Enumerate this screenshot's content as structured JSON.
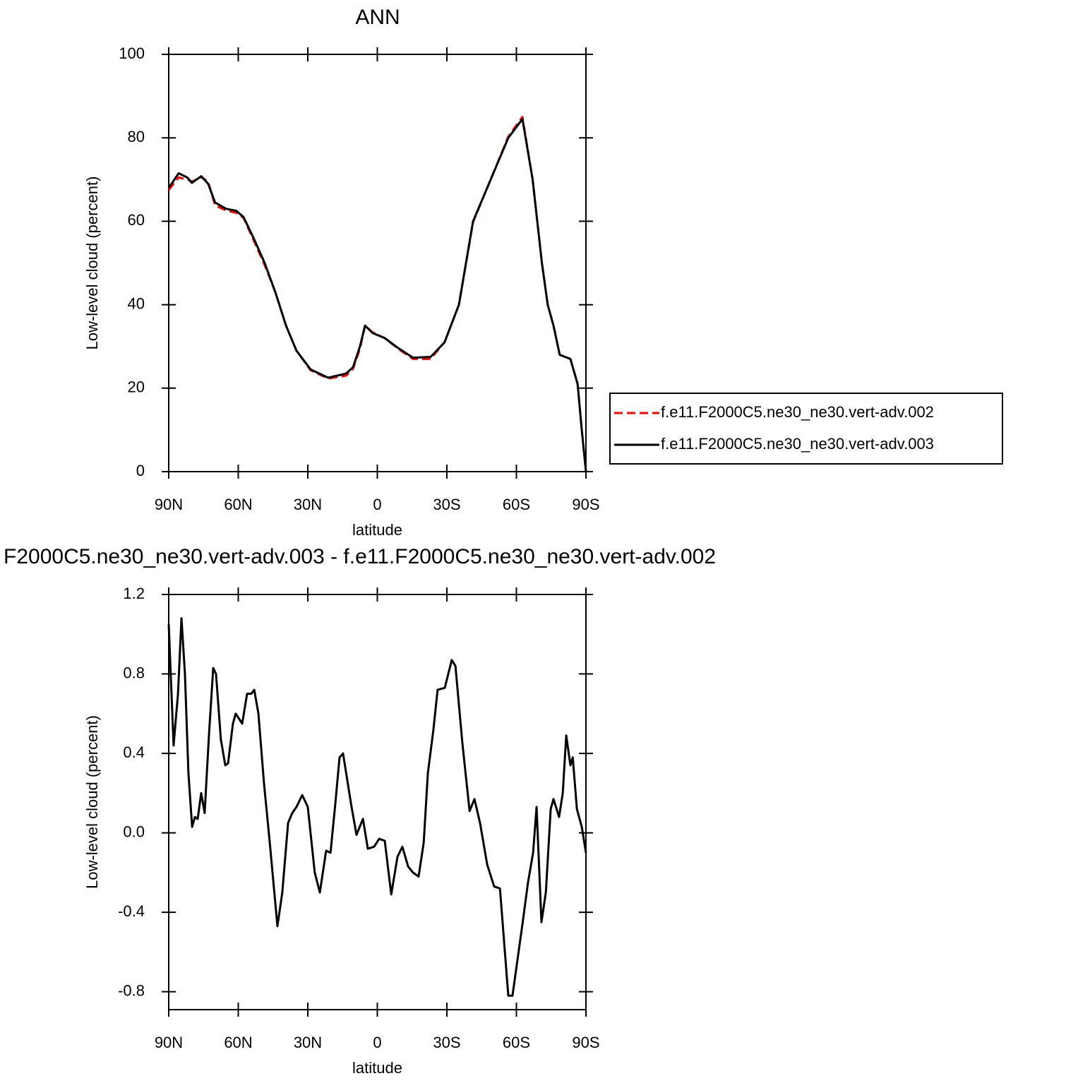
{
  "chart_data": [
    {
      "type": "line",
      "title": "ANN",
      "xlabel": "latitude",
      "ylabel": "Low-level cloud (percent)",
      "x": [
        90,
        85.7,
        82,
        80,
        76,
        73,
        70,
        65.3,
        60.8,
        57.7,
        53,
        48.6,
        44,
        39.4,
        34.9,
        28.8,
        21.2,
        13.5,
        10.5,
        7.5,
        5.3,
        2,
        -3.2,
        -9.3,
        -15.4,
        -23,
        -29,
        -35.2,
        -41.3,
        -48.9,
        -56.5,
        -62.6,
        -67,
        -71,
        -73.5,
        -76,
        -78.7,
        -83.3,
        -86.4,
        -88.2,
        -90
      ],
      "series": [
        {
          "name": "f.e11.F2000C5.ne30_ne30.vert-adv.002",
          "color": "#ff0000",
          "linestyle": "dashed",
          "values": [
            67.5,
            70.5,
            70,
            69.5,
            70.6,
            69.5,
            63.8,
            62.6,
            62,
            60.8,
            55,
            49.5,
            43,
            35,
            29,
            24.3,
            22.3,
            23,
            24.6,
            29.5,
            35,
            33.4,
            32,
            29.3,
            27,
            27,
            31,
            40,
            59.8,
            70,
            80.3,
            85,
            70,
            50,
            40,
            35,
            28,
            27,
            21,
            10,
            0
          ]
        },
        {
          "name": "f.e11.F2000C5.ne30_ne30.vert-adv.003",
          "color": "#000000",
          "linestyle": "solid",
          "values": [
            68,
            71.5,
            70.5,
            69.2,
            70.8,
            69,
            64.5,
            63,
            62.5,
            61,
            55.5,
            50,
            43,
            35,
            29,
            24.5,
            22.5,
            23.5,
            25,
            30,
            35,
            33.2,
            32,
            29.5,
            27.3,
            27.5,
            31,
            40,
            60,
            70,
            80,
            84.5,
            70,
            50,
            40,
            35,
            28,
            27,
            21,
            10,
            0
          ]
        }
      ],
      "xlim": [
        90,
        -90
      ],
      "xticks": [
        {
          "value": 90,
          "label": "90N"
        },
        {
          "value": 60,
          "label": "60N"
        },
        {
          "value": 30,
          "label": "30N"
        },
        0,
        {
          "value": -30,
          "label": "30S"
        },
        {
          "value": -60,
          "label": "60S"
        },
        {
          "value": -90,
          "label": "90S"
        }
      ],
      "ylim": [
        0,
        100
      ],
      "yticks": [
        0,
        20,
        40,
        60,
        80,
        100
      ],
      "legend": "right"
    },
    {
      "type": "line",
      "title": "F2000C5.ne30_ne30.vert-adv.003 - f.e11.F2000C5.ne30_ne30.vert-adv.002",
      "xlabel": "latitude",
      "ylabel": "Low-level cloud (percent)",
      "x": [
        90,
        87.9,
        86,
        84.5,
        83,
        81.5,
        79.9,
        78.7,
        77.5,
        76,
        74.5,
        72.6,
        70.8,
        69.6,
        67.5,
        65.6,
        64.4,
        62.3,
        61.1,
        58.3,
        56.2,
        54.4,
        53.1,
        51.3,
        48.9,
        46.4,
        43.1,
        41,
        38.5,
        36.7,
        34.9,
        32.4,
        30,
        27,
        24.8,
        22.1,
        20.2,
        18.1,
        16.3,
        14.8,
        11.4,
        9,
        6.2,
        4.1,
        1.4,
        -0.8,
        -3.2,
        -6,
        -8.7,
        -10.8,
        -13.3,
        -15.4,
        -17.8,
        -20,
        -21.8,
        -24.2,
        -26,
        -29.1,
        -32.1,
        -33.7,
        -36.7,
        -39.8,
        -41.9,
        -44.3,
        -47.4,
        -50.4,
        -52.9,
        -56.5,
        -58.3,
        -62.6,
        -65,
        -67.2,
        -68.7,
        -70.8,
        -72.7,
        -74.8,
        -76,
        -78.4,
        -80,
        -81.5,
        -83.3,
        -84.3,
        -86.1,
        -88.2,
        -90
      ],
      "series": [
        {
          "color": "#000000",
          "linestyle": "solid",
          "values": [
            1.05,
            0.44,
            0.7,
            1.08,
            0.8,
            0.3,
            0.03,
            0.08,
            0.07,
            0.2,
            0.1,
            0.5,
            0.83,
            0.8,
            0.47,
            0.34,
            0.35,
            0.55,
            0.6,
            0.55,
            0.7,
            0.7,
            0.72,
            0.6,
            0.25,
            -0.05,
            -0.47,
            -0.3,
            0.05,
            0.1,
            0.13,
            0.19,
            0.13,
            -0.2,
            -0.3,
            -0.09,
            -0.1,
            0.15,
            0.38,
            0.4,
            0.15,
            -0.01,
            0.07,
            -0.08,
            -0.07,
            -0.03,
            -0.04,
            -0.31,
            -0.12,
            -0.07,
            -0.17,
            -0.2,
            -0.22,
            -0.05,
            0.3,
            0.52,
            0.72,
            0.73,
            0.87,
            0.84,
            0.45,
            0.11,
            0.17,
            0.05,
            -0.16,
            -0.27,
            -0.28,
            -0.82,
            -0.82,
            -0.46,
            -0.25,
            -0.1,
            0.13,
            -0.45,
            -0.3,
            0.12,
            0.17,
            0.08,
            0.2,
            0.49,
            0.34,
            0.38,
            0.12,
            0.03,
            -0.1
          ]
        }
      ],
      "xlim": [
        90,
        -90
      ],
      "xticks": [
        {
          "value": 90,
          "label": "90N"
        },
        {
          "value": 60,
          "label": "60N"
        },
        {
          "value": 30,
          "label": "30N"
        },
        0,
        {
          "value": -30,
          "label": "30S"
        },
        {
          "value": -60,
          "label": "60S"
        },
        {
          "value": -90,
          "label": "90S"
        }
      ],
      "ylim": [
        -0.89,
        1.2
      ],
      "yticks": [
        {
          "value": -0.8,
          "label": "-0.8"
        },
        {
          "value": -0.4,
          "label": "-0.4"
        },
        {
          "value": 0,
          "label": "0.0"
        },
        0.4,
        0.8,
        1.2
      ]
    }
  ]
}
